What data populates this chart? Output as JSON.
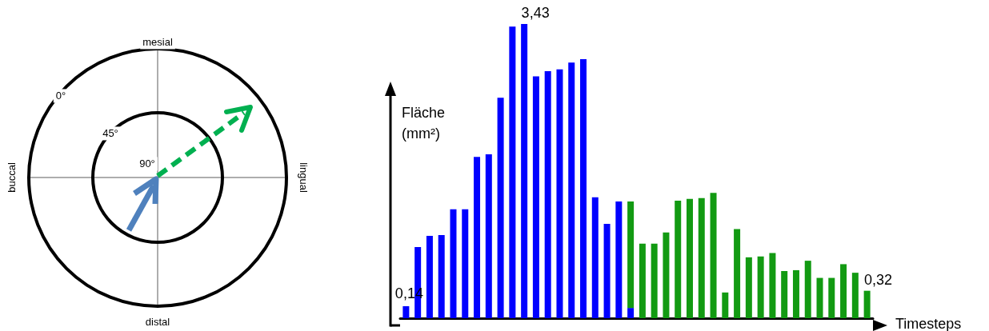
{
  "chart_data": [
    {
      "type": "other",
      "annotations": [
        "mesial",
        "distal",
        "buccal",
        "lingual",
        "0°",
        "45°",
        "90°"
      ]
    },
    {
      "type": "bar",
      "xlabel": "Timesteps",
      "ylabel": "Fläche\n(mm²)",
      "stacked": true,
      "tick_labels": false,
      "categories": [
        null,
        null,
        null,
        null,
        null,
        null,
        null,
        null,
        null,
        null,
        null,
        null,
        null,
        null,
        null,
        null,
        null,
        null,
        null,
        null,
        null,
        null,
        null,
        null,
        null,
        null,
        null,
        null,
        null,
        null,
        null,
        null,
        null,
        null,
        null,
        null,
        null,
        null,
        null,
        null
      ],
      "series": [
        {
          "color": "#0000ff",
          "values": [
            0.14,
            0.83,
            0.96,
            0.97,
            1.27,
            1.27,
            1.88,
            1.91,
            2.57,
            3.4,
            3.43,
            2.82,
            2.88,
            2.9,
            2.98,
            3.02,
            1.41,
            1.1,
            1.36,
            0.12,
            null,
            null,
            null,
            null,
            null,
            null,
            null,
            null,
            null,
            null,
            null,
            null,
            null,
            null,
            null,
            null,
            null,
            null,
            null,
            null
          ],
          "value_labels": [
            "0,14",
            null,
            null,
            null,
            null,
            null,
            null,
            null,
            null,
            null,
            "3,43",
            null,
            null,
            null,
            null,
            null,
            null,
            null,
            null,
            null,
            null,
            null,
            null,
            null,
            null,
            null,
            null,
            null,
            null,
            null,
            null,
            null,
            null,
            null,
            null,
            null,
            null,
            null,
            null,
            null
          ]
        },
        {
          "color": "#129a12",
          "values": [
            null,
            null,
            null,
            null,
            null,
            null,
            null,
            null,
            null,
            null,
            null,
            null,
            null,
            null,
            null,
            null,
            null,
            null,
            null,
            1.24,
            0.87,
            0.87,
            1.0,
            1.37,
            1.39,
            1.4,
            1.46,
            0.3,
            1.04,
            0.71,
            0.72,
            0.76,
            0.55,
            0.56,
            0.67,
            0.47,
            0.47,
            0.63,
            0.53,
            0.32
          ],
          "value_labels": [
            null,
            null,
            null,
            null,
            null,
            null,
            null,
            null,
            null,
            null,
            null,
            null,
            null,
            null,
            null,
            null,
            null,
            null,
            null,
            null,
            null,
            null,
            null,
            null,
            null,
            null,
            null,
            null,
            null,
            null,
            null,
            null,
            null,
            null,
            null,
            null,
            null,
            null,
            null,
            "0,32"
          ]
        }
      ]
    }
  ]
}
